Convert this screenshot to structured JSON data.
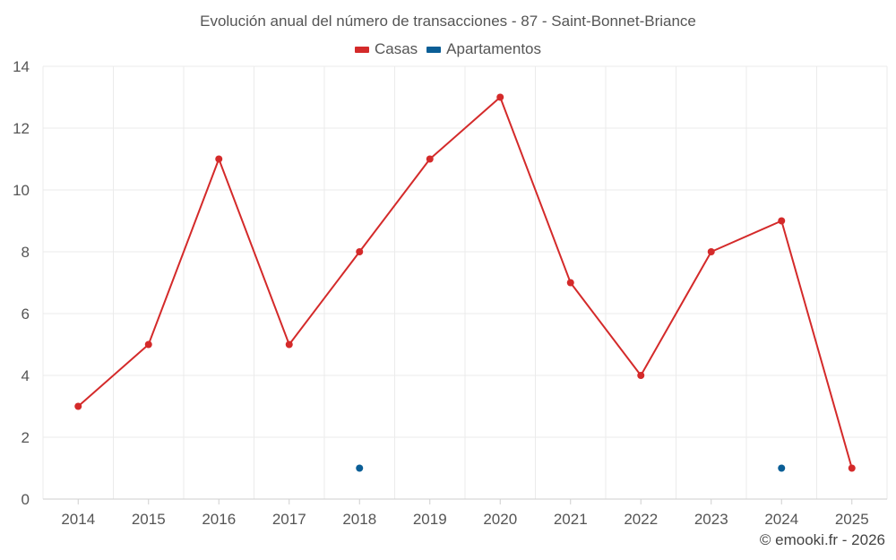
{
  "chart_data": {
    "type": "line",
    "title": "Evolución anual del número de transacciones - 87 - Saint-Bonnet-Briance",
    "categories": [
      "2014",
      "2015",
      "2016",
      "2017",
      "2018",
      "2019",
      "2020",
      "2021",
      "2022",
      "2023",
      "2024",
      "2025"
    ],
    "series": [
      {
        "name": "Casas",
        "color": "#d42a2a",
        "values": [
          3,
          5,
          11,
          5,
          8,
          11,
          13,
          7,
          4,
          8,
          9,
          1
        ]
      },
      {
        "name": "Apartamentos",
        "color": "#0a5e96",
        "values": [
          null,
          null,
          null,
          null,
          1,
          null,
          null,
          null,
          null,
          null,
          1,
          null
        ]
      }
    ],
    "ylim": [
      0,
      14
    ],
    "yticks": [
      "0",
      "2",
      "4",
      "6",
      "8",
      "10",
      "12",
      "14"
    ],
    "grid": true,
    "legend_position": "top-center"
  },
  "credit": "© emooki.fr - 2026"
}
